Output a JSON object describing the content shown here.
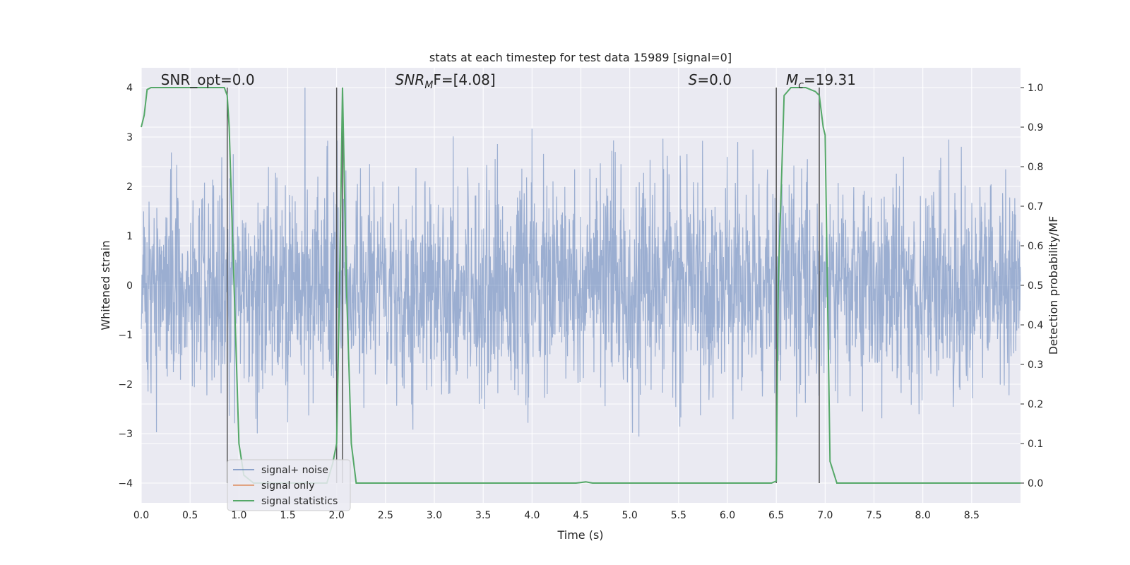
{
  "chart_data": {
    "type": "line",
    "title": "stats at each timestep for test data 15989 [signal=0]",
    "xlabel": "Time (s)",
    "ylabel_left": "Whitened strain",
    "ylabel_right": "Detection probability/MF",
    "xlim": [
      0,
      9
    ],
    "ylim_left": [
      -4.4,
      4.4
    ],
    "ylim_right": [
      -0.05,
      1.05
    ],
    "x_ticks": [
      "0.0",
      "0.5",
      "1.0",
      "1.5",
      "2.0",
      "2.5",
      "3.0",
      "3.5",
      "4.0",
      "4.5",
      "5.0",
      "5.5",
      "6.0",
      "6.5",
      "7.0",
      "7.5",
      "8.0",
      "8.5"
    ],
    "y_left_ticks": [
      "4",
      "3",
      "2",
      "1",
      "0",
      "−1",
      "−2",
      "−3",
      "−4"
    ],
    "y_right_ticks": [
      "1.0",
      "0.9",
      "0.8",
      "0.7",
      "0.6",
      "0.5",
      "0.4",
      "0.3",
      "0.2",
      "0.1",
      "0.0"
    ],
    "grid": true,
    "legend_position": "lower-left",
    "annotations": [
      {
        "id": "snr-opt",
        "prefix": "SNR_opt=0.0",
        "sub": "",
        "suffix": "",
        "x": 0.2
      },
      {
        "id": "snr-mf",
        "prefix": "SNR",
        "sub": "M",
        "suffix": "F=[4.08]",
        "italic": true,
        "x": 2.6
      },
      {
        "id": "s-stat",
        "prefix": "S",
        "sub": "",
        "suffix": "=0.0",
        "italic": true,
        "x": 5.6
      },
      {
        "id": "chirp-mass",
        "prefix": "M",
        "sub": "c",
        "suffix": "=19.31",
        "italic": true,
        "x": 6.6
      }
    ],
    "vlines": [
      {
        "x": 0.88,
        "y_range": [
          -4,
          4
        ]
      },
      {
        "x": 2.0,
        "y_range": [
          -4,
          4
        ]
      },
      {
        "x": 2.06,
        "y_range": [
          -4,
          4
        ]
      },
      {
        "x": 6.5,
        "y_range": [
          -4,
          4
        ]
      },
      {
        "x": 6.94,
        "y_range": [
          -4,
          4
        ]
      }
    ],
    "series": [
      {
        "name": "signal+ noise",
        "axis": "left",
        "color": "#4c72b0",
        "kind": "noise",
        "amplitude_range": [
          -4,
          4
        ]
      },
      {
        "name": "signal only",
        "axis": "left",
        "color": "#dd8452",
        "x": [],
        "y": []
      },
      {
        "name": "signal statistics",
        "axis": "right",
        "color": "#55a868",
        "x": [
          0.0,
          0.03,
          0.06,
          0.1,
          0.2,
          0.3,
          0.5,
          0.7,
          0.85,
          0.88,
          0.9,
          0.95,
          1.0,
          1.05,
          1.15,
          1.5,
          1.9,
          1.96,
          2.0,
          2.03,
          2.06,
          2.1,
          2.15,
          2.2,
          3.0,
          4.0,
          4.45,
          4.55,
          4.62,
          5.0,
          6.0,
          6.45,
          6.5,
          6.52,
          6.58,
          6.65,
          6.7,
          6.8,
          6.9,
          6.94,
          6.98,
          7.0,
          7.05,
          7.12,
          7.5,
          8.0,
          9.0
        ],
        "y": [
          0.9,
          0.93,
          0.995,
          1.0,
          1.0,
          1.0,
          1.0,
          1.0,
          1.0,
          0.98,
          0.9,
          0.5,
          0.1,
          0.02,
          0.0,
          0.0,
          0.0,
          0.05,
          0.1,
          0.5,
          1.0,
          0.5,
          0.1,
          0.0,
          0.0,
          0.0,
          0.0,
          0.003,
          0.0,
          0.0,
          0.0,
          0.0,
          0.005,
          0.5,
          0.98,
          1.0,
          1.0,
          1.0,
          0.99,
          0.98,
          0.9,
          0.88,
          0.055,
          0.0,
          0.0,
          0.0,
          0.0
        ]
      }
    ]
  }
}
